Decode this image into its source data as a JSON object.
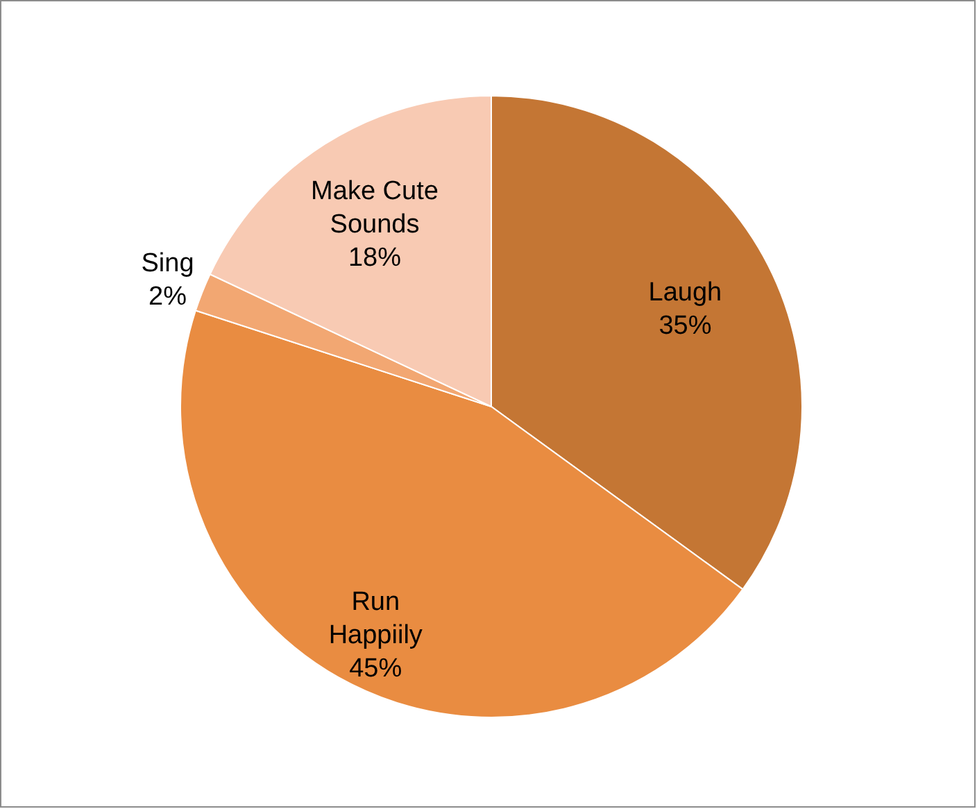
{
  "chart_data": {
    "type": "pie",
    "categories": [
      "Laugh",
      "Run Happiily",
      "Sing",
      "Make Cute Sounds"
    ],
    "values": [
      35,
      45,
      2,
      18
    ],
    "colors": [
      "#c47634",
      "#e98c41",
      "#f2a772",
      "#f8cab3"
    ],
    "value_labels": [
      "35%",
      "45%",
      "2%",
      "18%"
    ]
  }
}
